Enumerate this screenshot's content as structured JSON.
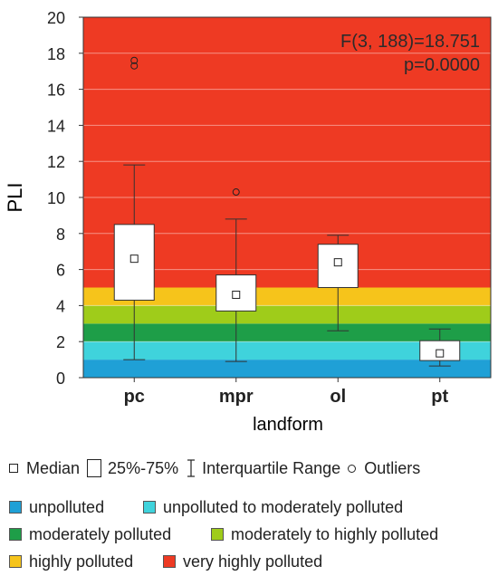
{
  "chart_data": {
    "type": "boxplot",
    "ylabel": "PLI",
    "xlabel": "landform",
    "ylim": [
      0,
      20
    ],
    "yticks": [
      0,
      2,
      4,
      6,
      8,
      10,
      12,
      14,
      16,
      18,
      20
    ],
    "categories": [
      "pc",
      "mpr",
      "ol",
      "pt"
    ],
    "boxes": [
      {
        "category": "pc",
        "whisker_low": 1.0,
        "q1": 4.3,
        "median": 6.6,
        "q3": 8.5,
        "whisker_high": 11.8,
        "outliers": [
          17.3,
          17.6
        ]
      },
      {
        "category": "mpr",
        "whisker_low": 0.9,
        "q1": 3.7,
        "median": 4.6,
        "q3": 5.7,
        "whisker_high": 8.8,
        "outliers": [
          10.3
        ]
      },
      {
        "category": "ol",
        "whisker_low": 2.6,
        "q1": 5.0,
        "median": 6.4,
        "q3": 7.4,
        "whisker_high": 7.9,
        "outliers": []
      },
      {
        "category": "pt",
        "whisker_low": 0.65,
        "q1": 0.95,
        "median": 1.35,
        "q3": 2.05,
        "whisker_high": 2.7,
        "outliers": []
      }
    ],
    "annotation": {
      "line1": "F(3, 188)=18.751",
      "line2": "p=0.0000"
    },
    "bands": [
      {
        "label": "unpolluted",
        "from": 0,
        "to": 1,
        "color": "#1fa0d6"
      },
      {
        "label": "unpolluted to moderately polluted",
        "from": 1,
        "to": 2,
        "color": "#3fd3dc"
      },
      {
        "label": "moderately polluted",
        "from": 2,
        "to": 3,
        "color": "#1e9e48"
      },
      {
        "label": "moderately to highly polluted",
        "from": 3,
        "to": 4,
        "color": "#9fcc1a"
      },
      {
        "label": "highly polluted",
        "from": 4,
        "to": 5,
        "color": "#f6c41b"
      },
      {
        "label": "very highly polluted",
        "from": 5,
        "to": 20,
        "color": "#ee3a23"
      }
    ],
    "grid": true
  },
  "legend_symbols": {
    "median": "Median",
    "box": "25%-75%",
    "whisker": "Interquartile Range",
    "outliers": "Outliers"
  }
}
